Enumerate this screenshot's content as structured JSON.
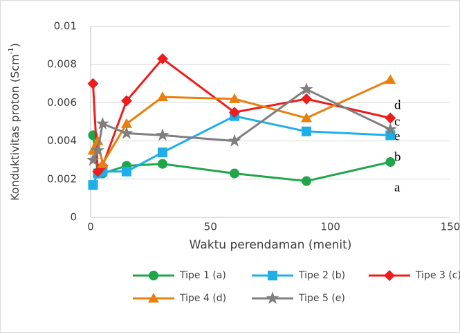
{
  "chart_data": {
    "type": "line",
    "xlabel": "Waktu perendaman (menit)",
    "ylabel": "Konduktivitas proton (Scm",
    "ylabel_sup": "-1",
    "ylabel_end": ")",
    "xlim": [
      0,
      150
    ],
    "xticks": [
      0,
      50,
      100,
      150
    ],
    "ylim": [
      0,
      0.01
    ],
    "yticks": [
      0,
      0.002,
      0.004,
      0.006,
      0.008,
      0.01
    ],
    "grid": true,
    "x": [
      1,
      3,
      5,
      15,
      30,
      60,
      90,
      125
    ],
    "series": [
      {
        "name": "Tipe 1 (a)",
        "color": "#1fa64a",
        "marker": "circle",
        "values": [
          0.0043,
          0.0023,
          0.0023,
          0.0027,
          0.0028,
          0.0023,
          0.0019,
          0.0029
        ]
      },
      {
        "name": "Tipe 2 (b)",
        "color": "#1eaee8",
        "marker": "square",
        "values": [
          0.0017,
          0.0023,
          0.0024,
          0.0024,
          0.0034,
          0.0053,
          0.0045,
          0.0043
        ]
      },
      {
        "name": "Tipe 3 (c)",
        "color": "#ee1c1c",
        "marker": "diamond",
        "values": [
          0.007,
          0.0024,
          0.0027,
          0.0061,
          0.0083,
          0.0055,
          0.0062,
          0.0052
        ]
      },
      {
        "name": "Tipe 4 (d)",
        "color": "#e8800e",
        "marker": "triangle",
        "values": [
          0.0035,
          0.004,
          0.0028,
          0.0049,
          0.0063,
          0.0062,
          0.0052,
          0.0072
        ]
      },
      {
        "name": "Tipe 5 (e)",
        "color": "#7f7f7f",
        "marker": "star",
        "values": [
          0.003,
          0.0035,
          0.0049,
          0.0044,
          0.0043,
          0.004,
          0.0067,
          0.0046
        ]
      }
    ],
    "annotations": [
      "d",
      "c",
      "e",
      "b",
      "a"
    ]
  }
}
